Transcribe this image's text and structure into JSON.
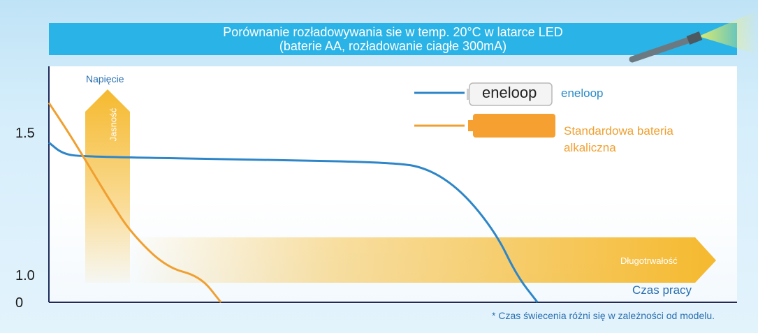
{
  "title": {
    "line1": "Porównanie rozładowywania sie w temp. 20°C w latarce LED",
    "line2": "(baterie AA, rozładowanie ciagłe 300mA)"
  },
  "colors": {
    "title_bg": "#2ab3e6",
    "eneloop": "#2e86c8",
    "alkaline": "#f0a030",
    "arrow": "#f5b92e",
    "label_blue": "#2a6fb0"
  },
  "chart_data": {
    "type": "line",
    "title": "Porównanie rozładowywania sie w temp. 20°C w latarce LED (baterie AA, rozładowanie ciagłe 300mA)",
    "ylabel": "Napięcie",
    "xlabel": "Czas pracy",
    "yticks": [
      "1.5",
      "1.0",
      "0"
    ],
    "legend_position": "top-right",
    "series": [
      {
        "name": "eneloop",
        "color": "#2e86c8",
        "points": [
          [
            0,
            1.47
          ],
          [
            0.02,
            1.43
          ],
          [
            0.05,
            1.42
          ],
          [
            0.3,
            1.41
          ],
          [
            0.5,
            1.4
          ],
          [
            0.55,
            1.38
          ],
          [
            0.6,
            1.3
          ],
          [
            0.65,
            1.15
          ],
          [
            0.68,
            1.0
          ],
          [
            0.71,
            0
          ]
        ]
      },
      {
        "name": "Standardowa bateria alkaliczna",
        "color": "#f0a030",
        "points": [
          [
            0,
            1.61
          ],
          [
            0.03,
            1.5
          ],
          [
            0.06,
            1.38
          ],
          [
            0.09,
            1.26
          ],
          [
            0.12,
            1.15
          ],
          [
            0.17,
            1.03
          ],
          [
            0.22,
            0.98
          ],
          [
            0.25,
            0
          ]
        ]
      }
    ],
    "arrows": {
      "vertical": "Jasność",
      "horizontal": "Długotrwałość"
    }
  },
  "legend": {
    "eneloop_label": "eneloop",
    "eneloop_brand": "eneloop",
    "alkaline_line1": "Standardowa bateria",
    "alkaline_line2": "alkaliczna"
  },
  "footnote": "* Czas świecenia różni się w zależności od modelu."
}
